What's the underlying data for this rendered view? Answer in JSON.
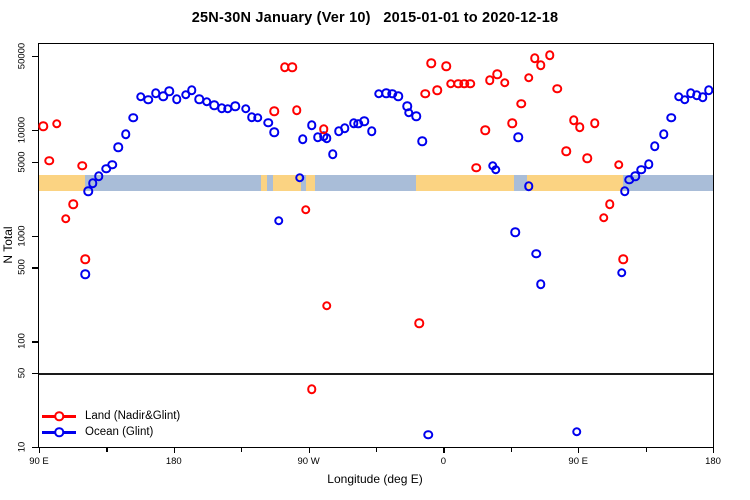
{
  "chart_data": {
    "type": "scatter",
    "title": "25N-30N January (Ver 10)   2015-01-01 to 2020-12-18",
    "xlabel": "Longitude (deg E)",
    "ylabel": "N Total",
    "x_axis": {
      "span_deg": 450,
      "note": "x is degrees east of the left edge (left edge = 90E, wrapping eastward to 180 on the right edge)",
      "major_ticks": [
        {
          "pos": 0,
          "label": "90 E"
        },
        {
          "pos": 90,
          "label": "180"
        },
        {
          "pos": 180,
          "label": "90 W"
        },
        {
          "pos": 270,
          "label": "0"
        },
        {
          "pos": 360,
          "label": "90 E"
        },
        {
          "pos": 450,
          "label": "180"
        }
      ],
      "minor_tick_positions": [
        45,
        135,
        225,
        315,
        405
      ]
    },
    "y_axis": {
      "scale": "log",
      "min": 10,
      "max": 65000,
      "ticks": [
        {
          "value": 50000,
          "label": "50000"
        },
        {
          "value": 10000,
          "label": "10000"
        },
        {
          "value": 5000,
          "label": "5000"
        },
        {
          "value": 1000,
          "label": "1000"
        },
        {
          "value": 500,
          "label": "500"
        },
        {
          "value": 100,
          "label": "100"
        },
        {
          "value": 50,
          "label": "50"
        },
        {
          "value": 10,
          "label": "10"
        }
      ]
    },
    "reference_line": {
      "value": 50,
      "color": "#1a1a1a"
    },
    "band_colors": {
      "land": "#fbd382",
      "ocean": "#a9bdd8"
    },
    "surface_band": {
      "n_range": [
        2640,
        3740
      ],
      "segments": [
        {
          "start": 0,
          "end": 31,
          "surface": "land"
        },
        {
          "start": 31,
          "end": 148,
          "surface": "ocean"
        },
        {
          "start": 148,
          "end": 152,
          "surface": "land"
        },
        {
          "start": 152,
          "end": 156,
          "surface": "ocean"
        },
        {
          "start": 156,
          "end": 175,
          "surface": "land"
        },
        {
          "start": 175,
          "end": 178,
          "surface": "ocean"
        },
        {
          "start": 178,
          "end": 184,
          "surface": "land"
        },
        {
          "start": 184,
          "end": 252,
          "surface": "ocean"
        },
        {
          "start": 252,
          "end": 317,
          "surface": "land"
        },
        {
          "start": 317,
          "end": 326,
          "surface": "ocean"
        },
        {
          "start": 326,
          "end": 390,
          "surface": "land"
        },
        {
          "start": 390,
          "end": 450,
          "surface": "ocean"
        }
      ]
    },
    "series": [
      {
        "name": "Ocean (Glint)",
        "color": "#0000ee",
        "points": [
          [
            31,
            433
          ],
          [
            33,
            2640
          ],
          [
            36,
            3140
          ],
          [
            40,
            3660
          ],
          [
            45,
            4270
          ],
          [
            49,
            4660
          ],
          [
            53,
            6890
          ],
          [
            58,
            9140
          ],
          [
            63,
            13000
          ],
          [
            68,
            20500
          ],
          [
            73,
            19200
          ],
          [
            78,
            22300
          ],
          [
            83,
            20900
          ],
          [
            87,
            23300
          ],
          [
            92,
            19600
          ],
          [
            98,
            21400
          ],
          [
            102,
            23800
          ],
          [
            107,
            19600
          ],
          [
            112,
            18400
          ],
          [
            117,
            17200
          ],
          [
            122,
            16100
          ],
          [
            126,
            15800
          ],
          [
            131,
            16800
          ],
          [
            138,
            15800
          ],
          [
            142,
            13200
          ],
          [
            146,
            13000
          ],
          [
            153,
            11700
          ],
          [
            157,
            9500
          ],
          [
            160,
            1380
          ],
          [
            174,
            3510
          ],
          [
            176,
            8200
          ],
          [
            182,
            11100
          ],
          [
            186,
            8570
          ],
          [
            190,
            8750
          ],
          [
            192,
            8370
          ],
          [
            196,
            5910
          ],
          [
            200,
            9760
          ],
          [
            204,
            10400
          ],
          [
            210,
            11600
          ],
          [
            213,
            11400
          ],
          [
            217,
            12100
          ],
          [
            222,
            9760
          ],
          [
            227,
            21900
          ],
          [
            232,
            22300
          ],
          [
            236,
            21900
          ],
          [
            240,
            20900
          ],
          [
            246,
            16800
          ],
          [
            247,
            14500
          ],
          [
            252,
            13500
          ],
          [
            256,
            7850
          ],
          [
            260,
            13
          ],
          [
            303,
            4560
          ],
          [
            305,
            4180
          ],
          [
            318,
            1080
          ],
          [
            320,
            8570
          ],
          [
            327,
            2940
          ],
          [
            332,
            670
          ],
          [
            335,
            348
          ],
          [
            359,
            14
          ],
          [
            389,
            443
          ],
          [
            391,
            2640
          ],
          [
            394,
            3360
          ],
          [
            398,
            3660
          ],
          [
            402,
            4180
          ],
          [
            407,
            4750
          ],
          [
            411,
            7040
          ],
          [
            417,
            9140
          ],
          [
            422,
            13000
          ],
          [
            427,
            20700
          ],
          [
            431,
            19400
          ],
          [
            435,
            22200
          ],
          [
            439,
            21200
          ],
          [
            443,
            20300
          ],
          [
            447,
            23800
          ]
        ]
      },
      {
        "name": "Land (Nadir&Glint)",
        "color": "#ff0000",
        "points": [
          [
            3,
            10800
          ],
          [
            7,
            5100
          ],
          [
            12,
            11400
          ],
          [
            18,
            1440
          ],
          [
            23,
            1990
          ],
          [
            29,
            4560
          ],
          [
            31,
            600
          ],
          [
            157,
            15100
          ],
          [
            164,
            39300
          ],
          [
            169,
            39300
          ],
          [
            172,
            15400
          ],
          [
            178,
            1750
          ],
          [
            182,
            35
          ],
          [
            190,
            10200
          ],
          [
            192,
            216
          ],
          [
            254,
            149
          ],
          [
            258,
            21900
          ],
          [
            262,
            42900
          ],
          [
            266,
            23800
          ],
          [
            272,
            40200
          ],
          [
            275,
            27200
          ],
          [
            280,
            27200
          ],
          [
            284,
            27200
          ],
          [
            288,
            27200
          ],
          [
            292,
            4370
          ],
          [
            298,
            9980
          ],
          [
            301,
            29600
          ],
          [
            306,
            33800
          ],
          [
            311,
            27800
          ],
          [
            316,
            11600
          ],
          [
            322,
            17600
          ],
          [
            327,
            31000
          ],
          [
            331,
            47900
          ],
          [
            335,
            41100
          ],
          [
            341,
            51100
          ],
          [
            346,
            24400
          ],
          [
            352,
            6310
          ],
          [
            357,
            12400
          ],
          [
            361,
            10600
          ],
          [
            366,
            5420
          ],
          [
            371,
            11600
          ],
          [
            377,
            1470
          ],
          [
            381,
            1990
          ],
          [
            387,
            4660
          ],
          [
            390,
            600
          ]
        ]
      }
    ],
    "legend": {
      "position": "bottom-left"
    }
  }
}
